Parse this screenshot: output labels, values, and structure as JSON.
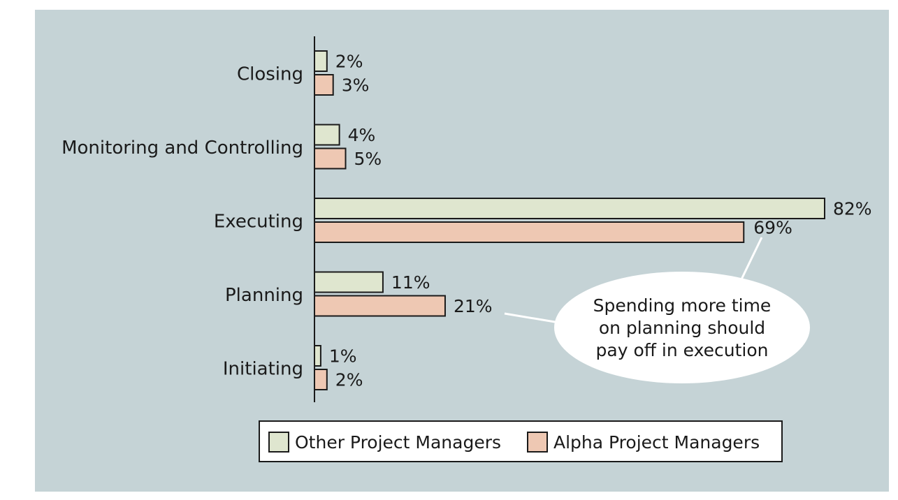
{
  "chart_data": {
    "type": "bar",
    "orientation": "horizontal",
    "categories": [
      "Closing",
      "Monitoring and Controlling",
      "Executing",
      "Planning",
      "Initiating"
    ],
    "series": [
      {
        "name": "Other Project Managers",
        "values": [
          2,
          4,
          82,
          11,
          1
        ],
        "labels": [
          "2%",
          "4%",
          "82%",
          "11%",
          "1%"
        ],
        "color": "#dfe6cf"
      },
      {
        "name": "Alpha Project Managers",
        "values": [
          3,
          5,
          69,
          21,
          2
        ],
        "labels": [
          "3%",
          "5%",
          "69%",
          "21%",
          "2%"
        ],
        "color": "#eec8b3"
      }
    ],
    "xlim": [
      0,
      82
    ],
    "annotation": [
      "Spending more time",
      "on planning should",
      "pay off in execution"
    ],
    "legend_position": "bottom",
    "grid": false,
    "background_color": "#c5d3d6",
    "bar_outline_color": "#1a1a1a"
  }
}
